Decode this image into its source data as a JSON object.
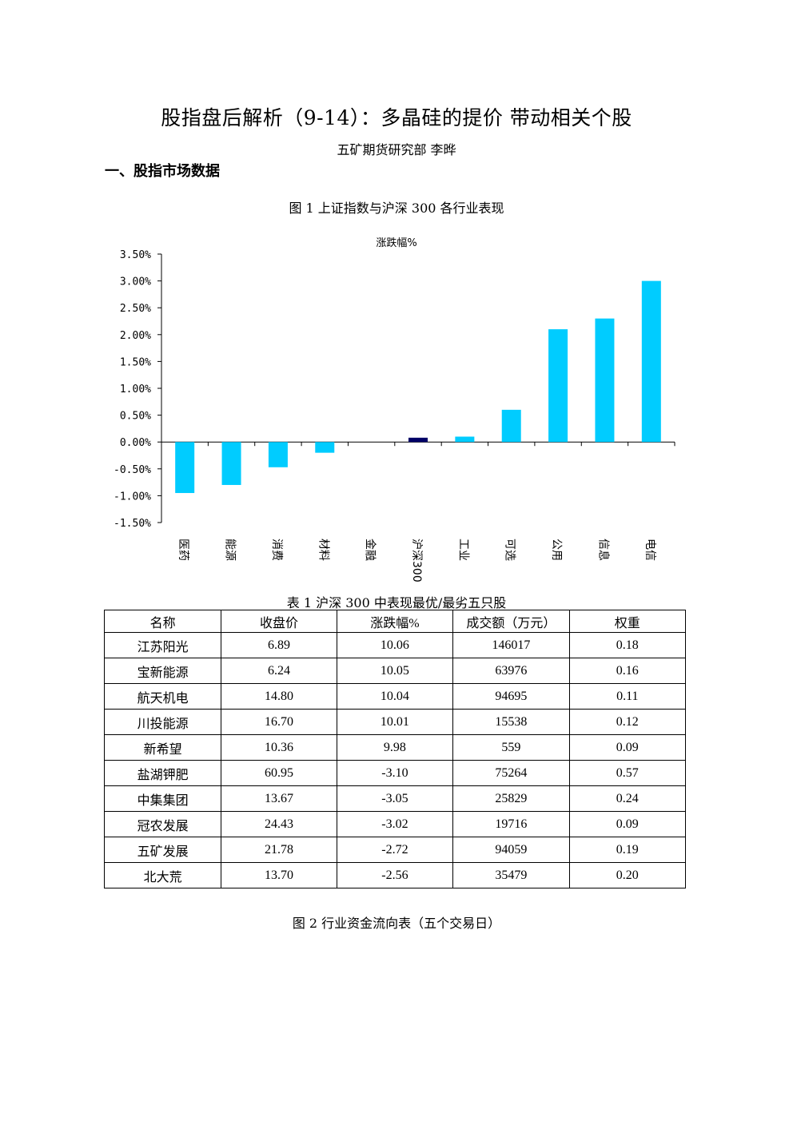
{
  "doc": {
    "title": "股指盘后解析（9-14）：多晶硅的提价  带动相关个股",
    "author": "五矿期货研究部   李晔",
    "section_heading": "一、股指市场数据",
    "figure1_caption": "图 1    上证指数与沪深 300 各行业表现",
    "table1_caption": "表 1    沪深 300 中表现最优/最劣五只股",
    "figure2_caption": "图 2    行业资金流向表（五个交易日）"
  },
  "chart_data": {
    "type": "bar",
    "title": "涨跌幅%",
    "categories": [
      "医药",
      "能源",
      "消费",
      "材料",
      "金融",
      "沪深300",
      "工业",
      "可选",
      "公用",
      "信息",
      "电信"
    ],
    "values": [
      -0.95,
      -0.8,
      -0.47,
      -0.2,
      0.0,
      0.08,
      0.1,
      0.6,
      2.1,
      2.3,
      3.0
    ],
    "ylim": [
      -1.5,
      3.5
    ],
    "yticks": [
      "3.50%",
      "3.00%",
      "2.50%",
      "2.00%",
      "1.50%",
      "1.00%",
      "0.50%",
      "0.00%",
      "-0.50%",
      "-1.00%",
      "-1.50%"
    ],
    "ytick_values": [
      3.5,
      3.0,
      2.5,
      2.0,
      1.5,
      1.0,
      0.5,
      0.0,
      -0.5,
      -1.0,
      -1.5
    ],
    "colors": {
      "default": "#00ccff",
      "highlight": "#000066"
    },
    "highlight_category": "沪深300",
    "grid": false,
    "legend": "none"
  },
  "table1": {
    "headers": [
      "名称",
      "收盘价",
      "涨跌幅%",
      "成交额（万元）",
      "权重"
    ],
    "rows": [
      [
        "江苏阳光",
        "6.89",
        "10.06",
        "146017",
        "0.18"
      ],
      [
        "宝新能源",
        "6.24",
        "10.05",
        "63976",
        "0.16"
      ],
      [
        "航天机电",
        "14.80",
        "10.04",
        "94695",
        "0.11"
      ],
      [
        "川投能源",
        "16.70",
        "10.01",
        "15538",
        "0.12"
      ],
      [
        "新希望",
        "10.36",
        "9.98",
        "559",
        "0.09"
      ],
      [
        "盐湖钾肥",
        "60.95",
        "-3.10",
        "75264",
        "0.57"
      ],
      [
        "中集集团",
        "13.67",
        "-3.05",
        "25829",
        "0.24"
      ],
      [
        "冠农发展",
        "24.43",
        "-3.02",
        "19716",
        "0.09"
      ],
      [
        "五矿发展",
        "21.78",
        "-2.72",
        "94059",
        "0.19"
      ],
      [
        "北大荒",
        "13.70",
        "-2.56",
        "35479",
        "0.20"
      ]
    ]
  }
}
